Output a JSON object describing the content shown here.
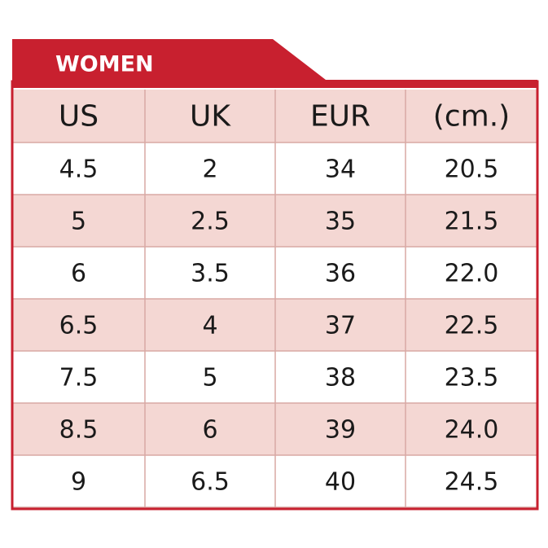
{
  "header": {
    "title": "WOMEN"
  },
  "table": {
    "columns": [
      "US",
      "UK",
      "EUR",
      "(cm.)"
    ],
    "rows": [
      [
        "4.5",
        "2",
        "34",
        "20.5"
      ],
      [
        "5",
        "2.5",
        "35",
        "21.5"
      ],
      [
        "6",
        "3.5",
        "36",
        "22.0"
      ],
      [
        "6.5",
        "4",
        "37",
        "22.5"
      ],
      [
        "7.5",
        "5",
        "38",
        "23.5"
      ],
      [
        "8.5",
        "6",
        "39",
        "24.0"
      ],
      [
        "9",
        "6.5",
        "40",
        "24.5"
      ]
    ]
  }
}
